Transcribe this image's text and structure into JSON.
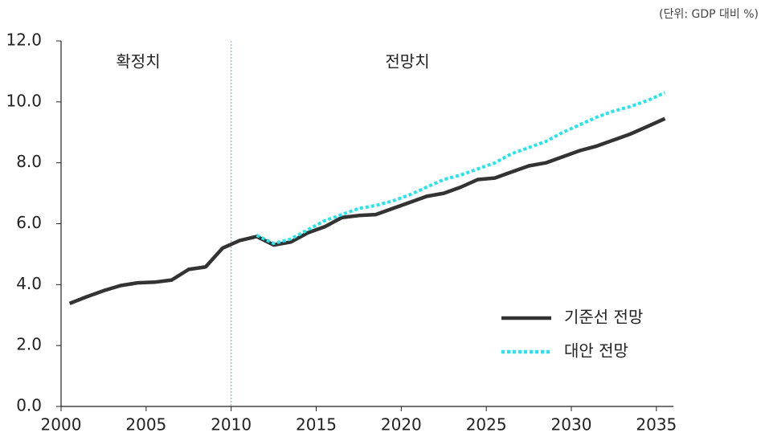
{
  "chart_data": {
    "type": "line",
    "unit_note": "(단위: GDP 대비 %)",
    "region_labels": [
      "확정치",
      "전망치"
    ],
    "divider_x": 2010,
    "x": [
      2000.5,
      2001.5,
      2002.5,
      2003.5,
      2004.5,
      2005.5,
      2006.5,
      2007.5,
      2008.5,
      2009.5,
      2010.5,
      2011.5,
      2012.5,
      2013.5,
      2014.5,
      2015.5,
      2016.5,
      2017.5,
      2018.5,
      2019.5,
      2020.5,
      2021.5,
      2022.5,
      2023.5,
      2024.5,
      2025.5,
      2026.5,
      2027.5,
      2028.5,
      2029.5,
      2030.5,
      2031.5,
      2032.5,
      2033.5,
      2034.5,
      2035.5
    ],
    "series": [
      {
        "name": "기준선 전망",
        "color": "#333333",
        "style": "solid",
        "values": [
          3.38,
          3.6,
          3.8,
          3.97,
          4.06,
          4.08,
          4.15,
          4.5,
          4.58,
          5.2,
          5.45,
          5.58,
          5.3,
          5.4,
          5.7,
          5.9,
          6.2,
          6.27,
          6.3,
          6.5,
          6.7,
          6.9,
          7.0,
          7.2,
          7.45,
          7.5,
          7.7,
          7.9,
          8.0,
          8.2,
          8.4,
          8.55,
          8.75,
          8.95,
          9.2,
          9.45
        ]
      },
      {
        "name": "대안 전망",
        "color": "#22e5ee",
        "style": "dotted",
        "values": [
          null,
          null,
          null,
          null,
          null,
          null,
          null,
          null,
          null,
          null,
          null,
          5.62,
          5.35,
          5.5,
          5.8,
          6.1,
          6.3,
          6.5,
          6.6,
          6.75,
          6.95,
          7.2,
          7.45,
          7.6,
          7.8,
          8.0,
          8.3,
          8.5,
          8.7,
          9.0,
          9.25,
          9.5,
          9.7,
          9.85,
          10.05,
          10.3
        ]
      }
    ],
    "xlim": [
      2000,
      2036
    ],
    "xticks": [
      2000,
      2005,
      2010,
      2015,
      2020,
      2025,
      2030,
      2035
    ],
    "ylim": [
      0,
      12
    ],
    "yticks": [
      {
        "value": 0,
        "label": "0.0"
      },
      {
        "value": 2,
        "label": "2.0"
      },
      {
        "value": 4,
        "label": "4.0"
      },
      {
        "value": 6,
        "label": "6.0"
      },
      {
        "value": 8,
        "label": "8.0"
      },
      {
        "value": 10,
        "label": "10.0"
      },
      {
        "value": 12,
        "label": "12.0"
      }
    ],
    "legend": "lower right"
  }
}
